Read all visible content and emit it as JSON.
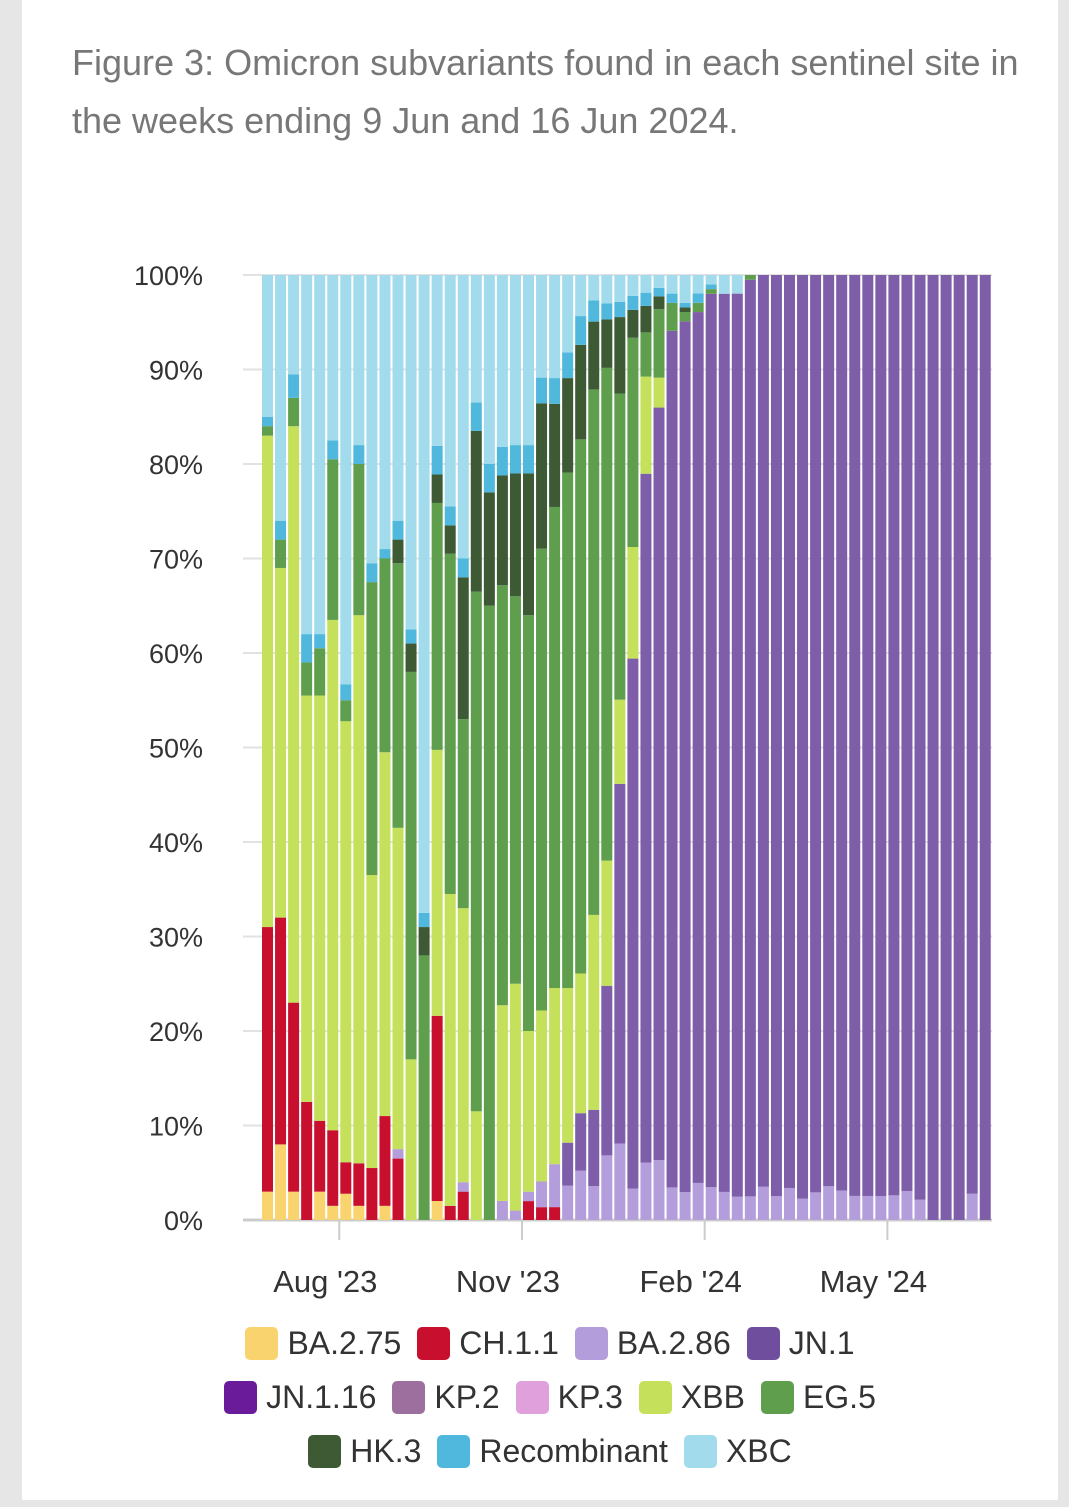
{
  "title": "Figure 3: Omicron subvariants found in each sentinel site in the weeks ending 9 Jun and 16 Jun 2024.",
  "chart_data": {
    "type": "bar",
    "stacked": true,
    "normalized": true,
    "title": "",
    "xlabel": "",
    "ylabel": "",
    "ylim": [
      0,
      100
    ],
    "y_ticks": [
      "0%",
      "10%",
      "20%",
      "30%",
      "40%",
      "50%",
      "60%",
      "70%",
      "80%",
      "90%",
      "100%"
    ],
    "x_ticks": [
      {
        "label": "Aug '23",
        "after_bar": 5
      },
      {
        "label": "Nov '23",
        "after_bar": 19
      },
      {
        "label": "Feb '24",
        "after_bar": 33
      },
      {
        "label": "May '24",
        "after_bar": 47
      }
    ],
    "grid": true,
    "legend_position": "bottom",
    "series": [
      {
        "name": "BA.2.75",
        "color": "#f9d36e",
        "values": [
          3,
          8,
          3,
          0,
          3,
          1.5,
          2.5,
          1.5,
          0,
          1.5,
          0,
          0,
          0,
          2,
          0,
          0,
          0,
          0,
          0,
          0,
          0,
          0,
          0,
          0,
          0,
          0,
          0,
          0,
          0,
          0,
          0,
          0,
          0,
          0,
          0,
          0,
          0,
          0,
          0,
          0,
          0,
          0,
          0,
          0,
          0,
          0,
          0,
          0,
          0,
          0,
          0,
          0,
          0,
          0,
          0,
          0
        ]
      },
      {
        "name": "CH.1.1",
        "color": "#c8102e",
        "values": [
          28,
          24,
          20,
          12.5,
          7.5,
          8,
          3,
          4.5,
          5.5,
          9.5,
          6.5,
          0,
          0,
          19.5,
          1.5,
          3,
          0,
          0,
          0,
          0,
          2,
          1.5,
          1.5,
          0,
          0,
          0,
          0,
          0,
          0,
          0,
          0,
          0,
          0,
          0,
          0,
          0,
          0,
          0,
          0,
          0,
          0,
          0,
          0,
          0,
          0,
          0,
          0,
          0,
          0,
          0,
          0,
          0,
          0,
          0,
          0,
          0
        ]
      },
      {
        "name": "BA.2.86",
        "color": "#b39ddb",
        "values": [
          0,
          0,
          0,
          0,
          0,
          0,
          0,
          0,
          0,
          0,
          1,
          0,
          0,
          0,
          0,
          1,
          0,
          0,
          2,
          1,
          1,
          3,
          5,
          4,
          6,
          4,
          8,
          10,
          4.5,
          6.5,
          7,
          3.5,
          3,
          4,
          3.5,
          3,
          2.5,
          2.5,
          3.5,
          2.5,
          3,
          2,
          2.5,
          3,
          2.5,
          2,
          1.5,
          1.5,
          1.5,
          1.5,
          1,
          0,
          0,
          0,
          1,
          0
        ]
      },
      {
        "name": "JN.1",
        "color": "#7e5ea8",
        "values": [
          0,
          0,
          0,
          0,
          0,
          0,
          0,
          0,
          0,
          0,
          0,
          0,
          0,
          0,
          0,
          0,
          0,
          0,
          0,
          0,
          0,
          0,
          0,
          5,
          7,
          9,
          21,
          47,
          76,
          78,
          88,
          92,
          94,
          94,
          95,
          96,
          97,
          97,
          96,
          96,
          85.5,
          86.5,
          83,
          81,
          77.5,
          76.5,
          57.5,
          58,
          56,
          47.5,
          45.5,
          41,
          37,
          39.5,
          35,
          37
        ]
      },
      {
        "name": "JN.1.16",
        "color": "#6a1b9a",
        "values": [
          0,
          0,
          0,
          0,
          0,
          0,
          0,
          0,
          0,
          0,
          0,
          0,
          0,
          0,
          0,
          0,
          0,
          0,
          0,
          0,
          0,
          0,
          0,
          0,
          0,
          0,
          0,
          0,
          0,
          0,
          0,
          0,
          0,
          0,
          0,
          0,
          0,
          0,
          0,
          0,
          0,
          0,
          0,
          0,
          0,
          0,
          0,
          0,
          0,
          0,
          0,
          0,
          0,
          0,
          0,
          0
        ]
      },
      {
        "name": "KP.2",
        "color": "#9c6f9e",
        "values": [
          0,
          0,
          0,
          0,
          0,
          0,
          0,
          0,
          0,
          0,
          0,
          0,
          0,
          0,
          0,
          0,
          0,
          0,
          0,
          0,
          0,
          0,
          0,
          0,
          0,
          0,
          0,
          0,
          0,
          0,
          0,
          0,
          0,
          0,
          0,
          0,
          0,
          0,
          0,
          0,
          0,
          0,
          0,
          0,
          0,
          0,
          0,
          0,
          0,
          0,
          0,
          0,
          0,
          0,
          0,
          0
        ]
      },
      {
        "name": "KP.3",
        "color": "#e0a0dc",
        "values": [
          0,
          0,
          0,
          0,
          0,
          0,
          0,
          0,
          0,
          0,
          0,
          0,
          0,
          0,
          0,
          0,
          0,
          0,
          0,
          0,
          0,
          0,
          0,
          0,
          0,
          0,
          0,
          0,
          0,
          0,
          0,
          0,
          0,
          0,
          0,
          0,
          0,
          0,
          0,
          0,
          0,
          0,
          0,
          0,
          0,
          0,
          0,
          0,
          0,
          0,
          0,
          0,
          0,
          0,
          0,
          0
        ]
      },
      {
        "name": "XBB",
        "color": "#c5e05a",
        "values": [
          52,
          37,
          61,
          43,
          45,
          54,
          42,
          58,
          31,
          38.5,
          34,
          17,
          0,
          28,
          33,
          29,
          11.5,
          0,
          20.5,
          24,
          17,
          20,
          20.5,
          18,
          17,
          23,
          15.5,
          11,
          16,
          11,
          3.5,
          0,
          0,
          0,
          0,
          0,
          0,
          0,
          0,
          0,
          0,
          0,
          0,
          0,
          0,
          0,
          0,
          0,
          0,
          0,
          0,
          0,
          0,
          0,
          0,
          0
        ]
      },
      {
        "name": "EG.5",
        "color": "#5e9e4d",
        "values": [
          1,
          3,
          3,
          3.5,
          5,
          17,
          2,
          16,
          31,
          20.5,
          28,
          41,
          28,
          26,
          36,
          20,
          55,
          65,
          44,
          41,
          44,
          54,
          56,
          60,
          65,
          62,
          61,
          40,
          30,
          5,
          8,
          3,
          1,
          1,
          0.5,
          0,
          0,
          0.5,
          0,
          0,
          0,
          0,
          0,
          0,
          0,
          0,
          0,
          0,
          0,
          0,
          0,
          0,
          0,
          0,
          0,
          0
        ]
      },
      {
        "name": "HK.3",
        "color": "#3d5a35",
        "values": [
          0,
          0,
          0,
          0,
          0,
          0,
          0,
          0,
          0,
          0,
          2.5,
          3,
          3,
          3,
          3,
          15,
          17,
          12,
          11.5,
          13,
          15,
          17,
          12,
          11,
          11.5,
          8,
          6,
          10,
          4,
          3,
          1.5,
          0,
          0.5,
          0,
          0,
          0,
          0,
          0,
          0,
          0,
          0,
          0,
          0,
          0,
          0,
          0,
          0,
          0,
          0,
          0,
          0,
          0,
          0,
          0,
          0,
          0
        ]
      },
      {
        "name": "Recombinant",
        "color": "#4fb8dc",
        "values": [
          1,
          2,
          2.5,
          3,
          1.5,
          2,
          1.5,
          2,
          2,
          1,
          2,
          1.5,
          1.5,
          3,
          2,
          2,
          3,
          3,
          3,
          3,
          3,
          3,
          3,
          3,
          3.5,
          2.5,
          2,
          2,
          2,
          1.5,
          1,
          1,
          0.5,
          1,
          0.5,
          0,
          0,
          0,
          0,
          0,
          0,
          0,
          0,
          0,
          0,
          0,
          0,
          0,
          0,
          0,
          0,
          0,
          0,
          0,
          0,
          0
        ]
      },
      {
        "name": "XBC",
        "color": "#a2dbec",
        "values": [
          15,
          26,
          10.5,
          38,
          38,
          17.5,
          39,
          18,
          30.5,
          29,
          26,
          37.5,
          67.5,
          18,
          24.5,
          30,
          13.5,
          20,
          18,
          18,
          18,
          12,
          12,
          9,
          5,
          3,
          3.5,
          3.5,
          3,
          2,
          1.5,
          2,
          3,
          2,
          1,
          2,
          2,
          0,
          0,
          0,
          0,
          0,
          0,
          0,
          0,
          0,
          0,
          0,
          0,
          0,
          0,
          0,
          0,
          0,
          0,
          0
        ]
      }
    ]
  },
  "legend": {
    "items": [
      {
        "label": "BA.2.75",
        "color": "#f9d36e",
        "icon": "legend-swatch"
      },
      {
        "label": "CH.1.1",
        "color": "#c8102e",
        "icon": "legend-swatch"
      },
      {
        "label": "BA.2.86",
        "color": "#b39ddb",
        "icon": "legend-swatch"
      },
      {
        "label": "JN.1",
        "color": "#6f4e9e",
        "icon": "legend-swatch"
      },
      {
        "label": "JN.1.16",
        "color": "#6a1b9a",
        "icon": "legend-swatch"
      },
      {
        "label": "KP.2",
        "color": "#9c6f9e",
        "icon": "legend-swatch"
      },
      {
        "label": "KP.3",
        "color": "#e0a0dc",
        "icon": "legend-swatch"
      },
      {
        "label": "XBB",
        "color": "#c5e05a",
        "icon": "legend-swatch"
      },
      {
        "label": "EG.5",
        "color": "#5e9e4d",
        "icon": "legend-swatch"
      },
      {
        "label": "HK.3",
        "color": "#3d5a35",
        "icon": "legend-swatch"
      },
      {
        "label": "Recombinant",
        "color": "#4fb8dc",
        "icon": "legend-swatch"
      },
      {
        "label": "XBC",
        "color": "#a2dbec",
        "icon": "legend-swatch"
      }
    ]
  }
}
